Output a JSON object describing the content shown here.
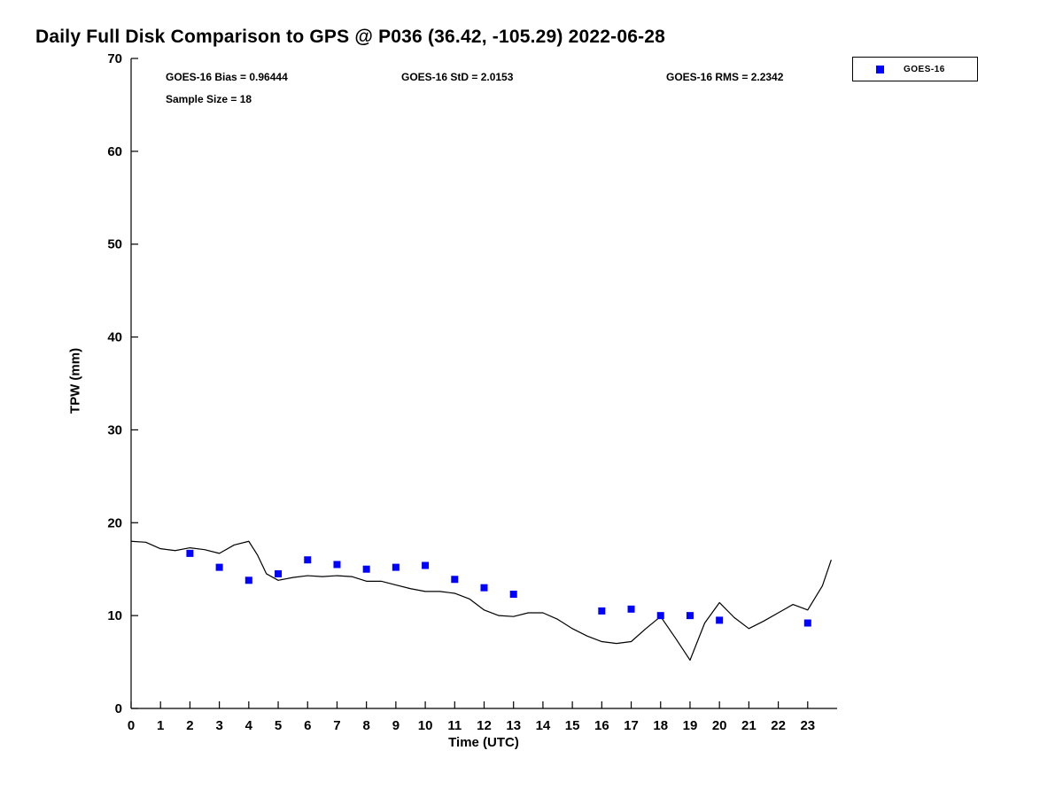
{
  "title": "Daily Full Disk Comparison to GPS @ P036 (36.42, -105.29) 2022-06-28",
  "stats": {
    "bias": "GOES-16 Bias = 0.96444",
    "std": "GOES-16 StD = 2.0153",
    "rms": "GOES-16 RMS = 2.2342",
    "sample": "Sample Size = 18"
  },
  "legend": {
    "entries": [
      {
        "label": "GOES-16",
        "marker": "square",
        "marker_color": "#0000ff"
      }
    ]
  },
  "chart_data": {
    "type": "line+scatter",
    "title": "Daily Full Disk Comparison to GPS @ P036 (36.42, -105.29) 2022-06-28",
    "xlabel": "Time (UTC)",
    "ylabel": "TPW (mm)",
    "xlim": [
      0,
      24
    ],
    "ylim": [
      0,
      70
    ],
    "xticks": [
      0,
      1,
      2,
      3,
      4,
      5,
      6,
      7,
      8,
      9,
      10,
      11,
      12,
      13,
      14,
      15,
      16,
      17,
      18,
      19,
      20,
      21,
      22,
      23
    ],
    "yticks": [
      0,
      10,
      20,
      30,
      40,
      50,
      60,
      70
    ],
    "grid": false,
    "legend_position": "top-right-outside",
    "colors": {
      "line": "#000000",
      "marker": "#0000ff"
    },
    "series": [
      {
        "name": "GPS",
        "type": "line",
        "color": "#000000",
        "points": [
          [
            0,
            18.0
          ],
          [
            0.5,
            17.9
          ],
          [
            1,
            17.2
          ],
          [
            1.5,
            17.0
          ],
          [
            2,
            17.3
          ],
          [
            2.5,
            17.1
          ],
          [
            3,
            16.7
          ],
          [
            3.5,
            17.6
          ],
          [
            4,
            18.0
          ],
          [
            4.3,
            16.5
          ],
          [
            4.6,
            14.5
          ],
          [
            5,
            13.8
          ],
          [
            5.5,
            14.1
          ],
          [
            6,
            14.3
          ],
          [
            6.5,
            14.2
          ],
          [
            7,
            14.3
          ],
          [
            7.5,
            14.2
          ],
          [
            8,
            13.7
          ],
          [
            8.5,
            13.7
          ],
          [
            9,
            13.3
          ],
          [
            9.5,
            12.9
          ],
          [
            10,
            12.6
          ],
          [
            10.5,
            12.6
          ],
          [
            11,
            12.4
          ],
          [
            11.5,
            11.8
          ],
          [
            12,
            10.6
          ],
          [
            12.5,
            10.0
          ],
          [
            13,
            9.9
          ],
          [
            13.5,
            10.3
          ],
          [
            14,
            10.3
          ],
          [
            14.5,
            9.6
          ],
          [
            15,
            8.6
          ],
          [
            15.5,
            7.8
          ],
          [
            16,
            7.2
          ],
          [
            16.5,
            7.0
          ],
          [
            17,
            7.2
          ],
          [
            17.5,
            8.6
          ],
          [
            18,
            9.9
          ],
          [
            18.5,
            7.6
          ],
          [
            19,
            5.2
          ],
          [
            19.5,
            9.2
          ],
          [
            20,
            11.4
          ],
          [
            20.5,
            9.8
          ],
          [
            21,
            8.6
          ],
          [
            21.5,
            9.4
          ],
          [
            22,
            10.3
          ],
          [
            22.5,
            11.2
          ],
          [
            23,
            10.6
          ],
          [
            23.5,
            13.2
          ],
          [
            23.8,
            16.0
          ]
        ]
      },
      {
        "name": "GOES-16",
        "type": "scatter",
        "color": "#0000ff",
        "sample_size": 18,
        "points": [
          [
            2,
            16.7
          ],
          [
            3,
            15.2
          ],
          [
            4,
            13.8
          ],
          [
            5,
            14.5
          ],
          [
            6,
            16.0
          ],
          [
            7,
            15.5
          ],
          [
            8,
            15.0
          ],
          [
            9,
            15.2
          ],
          [
            10,
            15.4
          ],
          [
            11,
            13.9
          ],
          [
            12,
            13.0
          ],
          [
            13,
            12.3
          ],
          [
            16,
            10.5
          ],
          [
            17,
            10.7
          ],
          [
            18,
            10.0
          ],
          [
            19,
            10.0
          ],
          [
            20,
            9.5
          ],
          [
            23,
            9.2
          ]
        ]
      }
    ]
  }
}
